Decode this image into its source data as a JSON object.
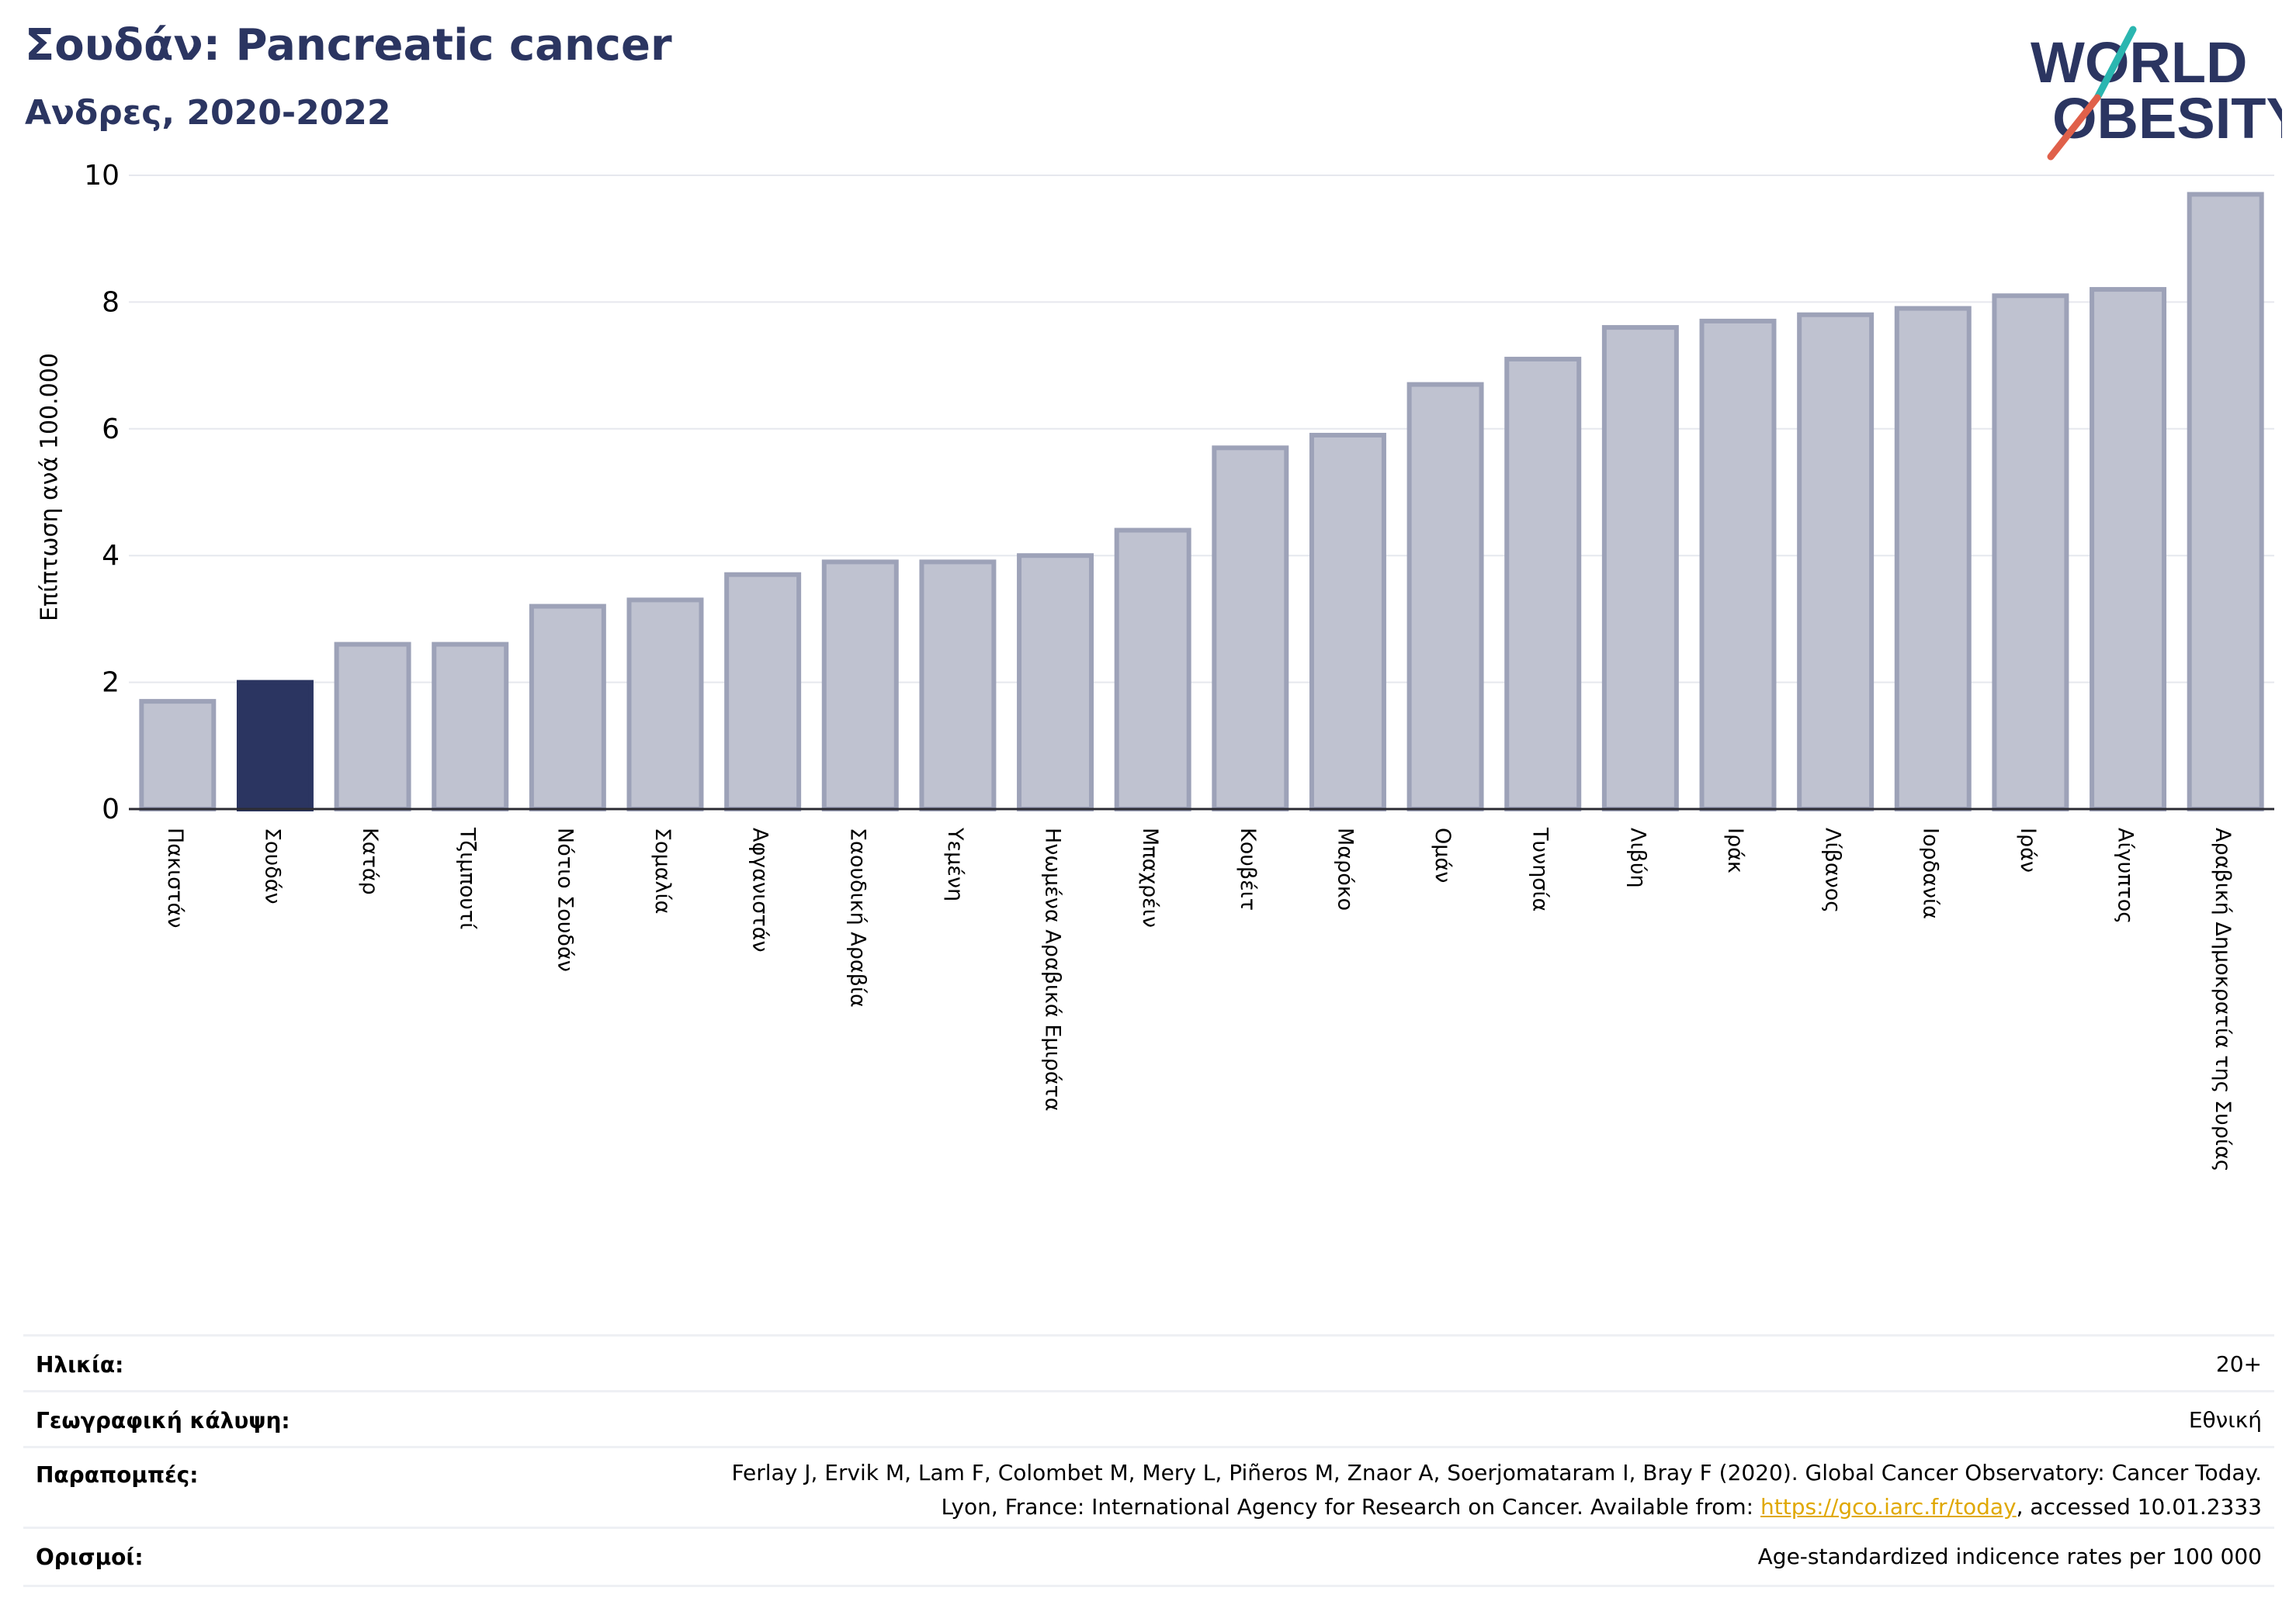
{
  "header": {
    "title": "Σουδάν: Pancreatic cancer",
    "subtitle": "Ανδρες, 2020-2022"
  },
  "logo": {
    "line1": "WORLD",
    "line2": "OBESITY"
  },
  "colors": {
    "highlight": "#2b3561",
    "bar_fill": "#bfc2d0",
    "bar_stroke": "#9da2b8",
    "brand_teal": "#2bb6b0",
    "brand_red": "#e0604a",
    "link": "#e0a800"
  },
  "chart_data": {
    "type": "bar",
    "ylabel": "Επίπτωση ανά 100.000",
    "ylim": [
      0,
      10
    ],
    "yticks": [
      0,
      2,
      4,
      6,
      8,
      10
    ],
    "grid": true,
    "highlight_category": "Σουδάν",
    "categories": [
      "Πακιστάν",
      "Σουδάν",
      "Κατάρ",
      "Τζιμπουτί",
      "Νότιο Σουδάν",
      "Σομαλία",
      "Αφγανιστάν",
      "Σαουδική Αραβία",
      "Υεμένη",
      "Ηνωμένα Αραβικά Εμιράτα",
      "Μπαχρέιν",
      "Κουβέιτ",
      "Μαρόκο",
      "Ομάν",
      "Τυνησία",
      "Λιβύη",
      "Ιράκ",
      "Λίβανος",
      "Ιορδανία",
      "Ιράν",
      "Αίγυπτος",
      "Αραβική Δημοκρατία της Συρίας"
    ],
    "values": [
      1.7,
      2.0,
      2.6,
      2.6,
      3.2,
      3.3,
      3.7,
      3.9,
      3.9,
      4.0,
      4.4,
      5.7,
      5.9,
      6.7,
      7.1,
      7.6,
      7.7,
      7.8,
      7.9,
      8.1,
      8.2,
      9.7
    ]
  },
  "info": {
    "age_label": "Ηλικία:",
    "age_value": "20+",
    "coverage_label": "Γεωγραφική κάλυψη:",
    "coverage_value": "Εθνική",
    "refs_label": "Παραπομπές:",
    "refs_line1": "Ferlay J, Ervik M, Lam F, Colombet M, Mery L, Piñeros M, Znaor A, Soerjomataram I, Bray F (2020). Global Cancer Observatory: Cancer Today.",
    "refs_line2_pre": "Lyon, France: International Agency for Research on Cancer. Available from: ",
    "refs_link": "https://gco.iarc.fr/today",
    "refs_line2_post": ", accessed 10.01.2333",
    "defs_label": "Ορισμοί:",
    "defs_value": "Age-standardized indicence rates per 100 000"
  }
}
